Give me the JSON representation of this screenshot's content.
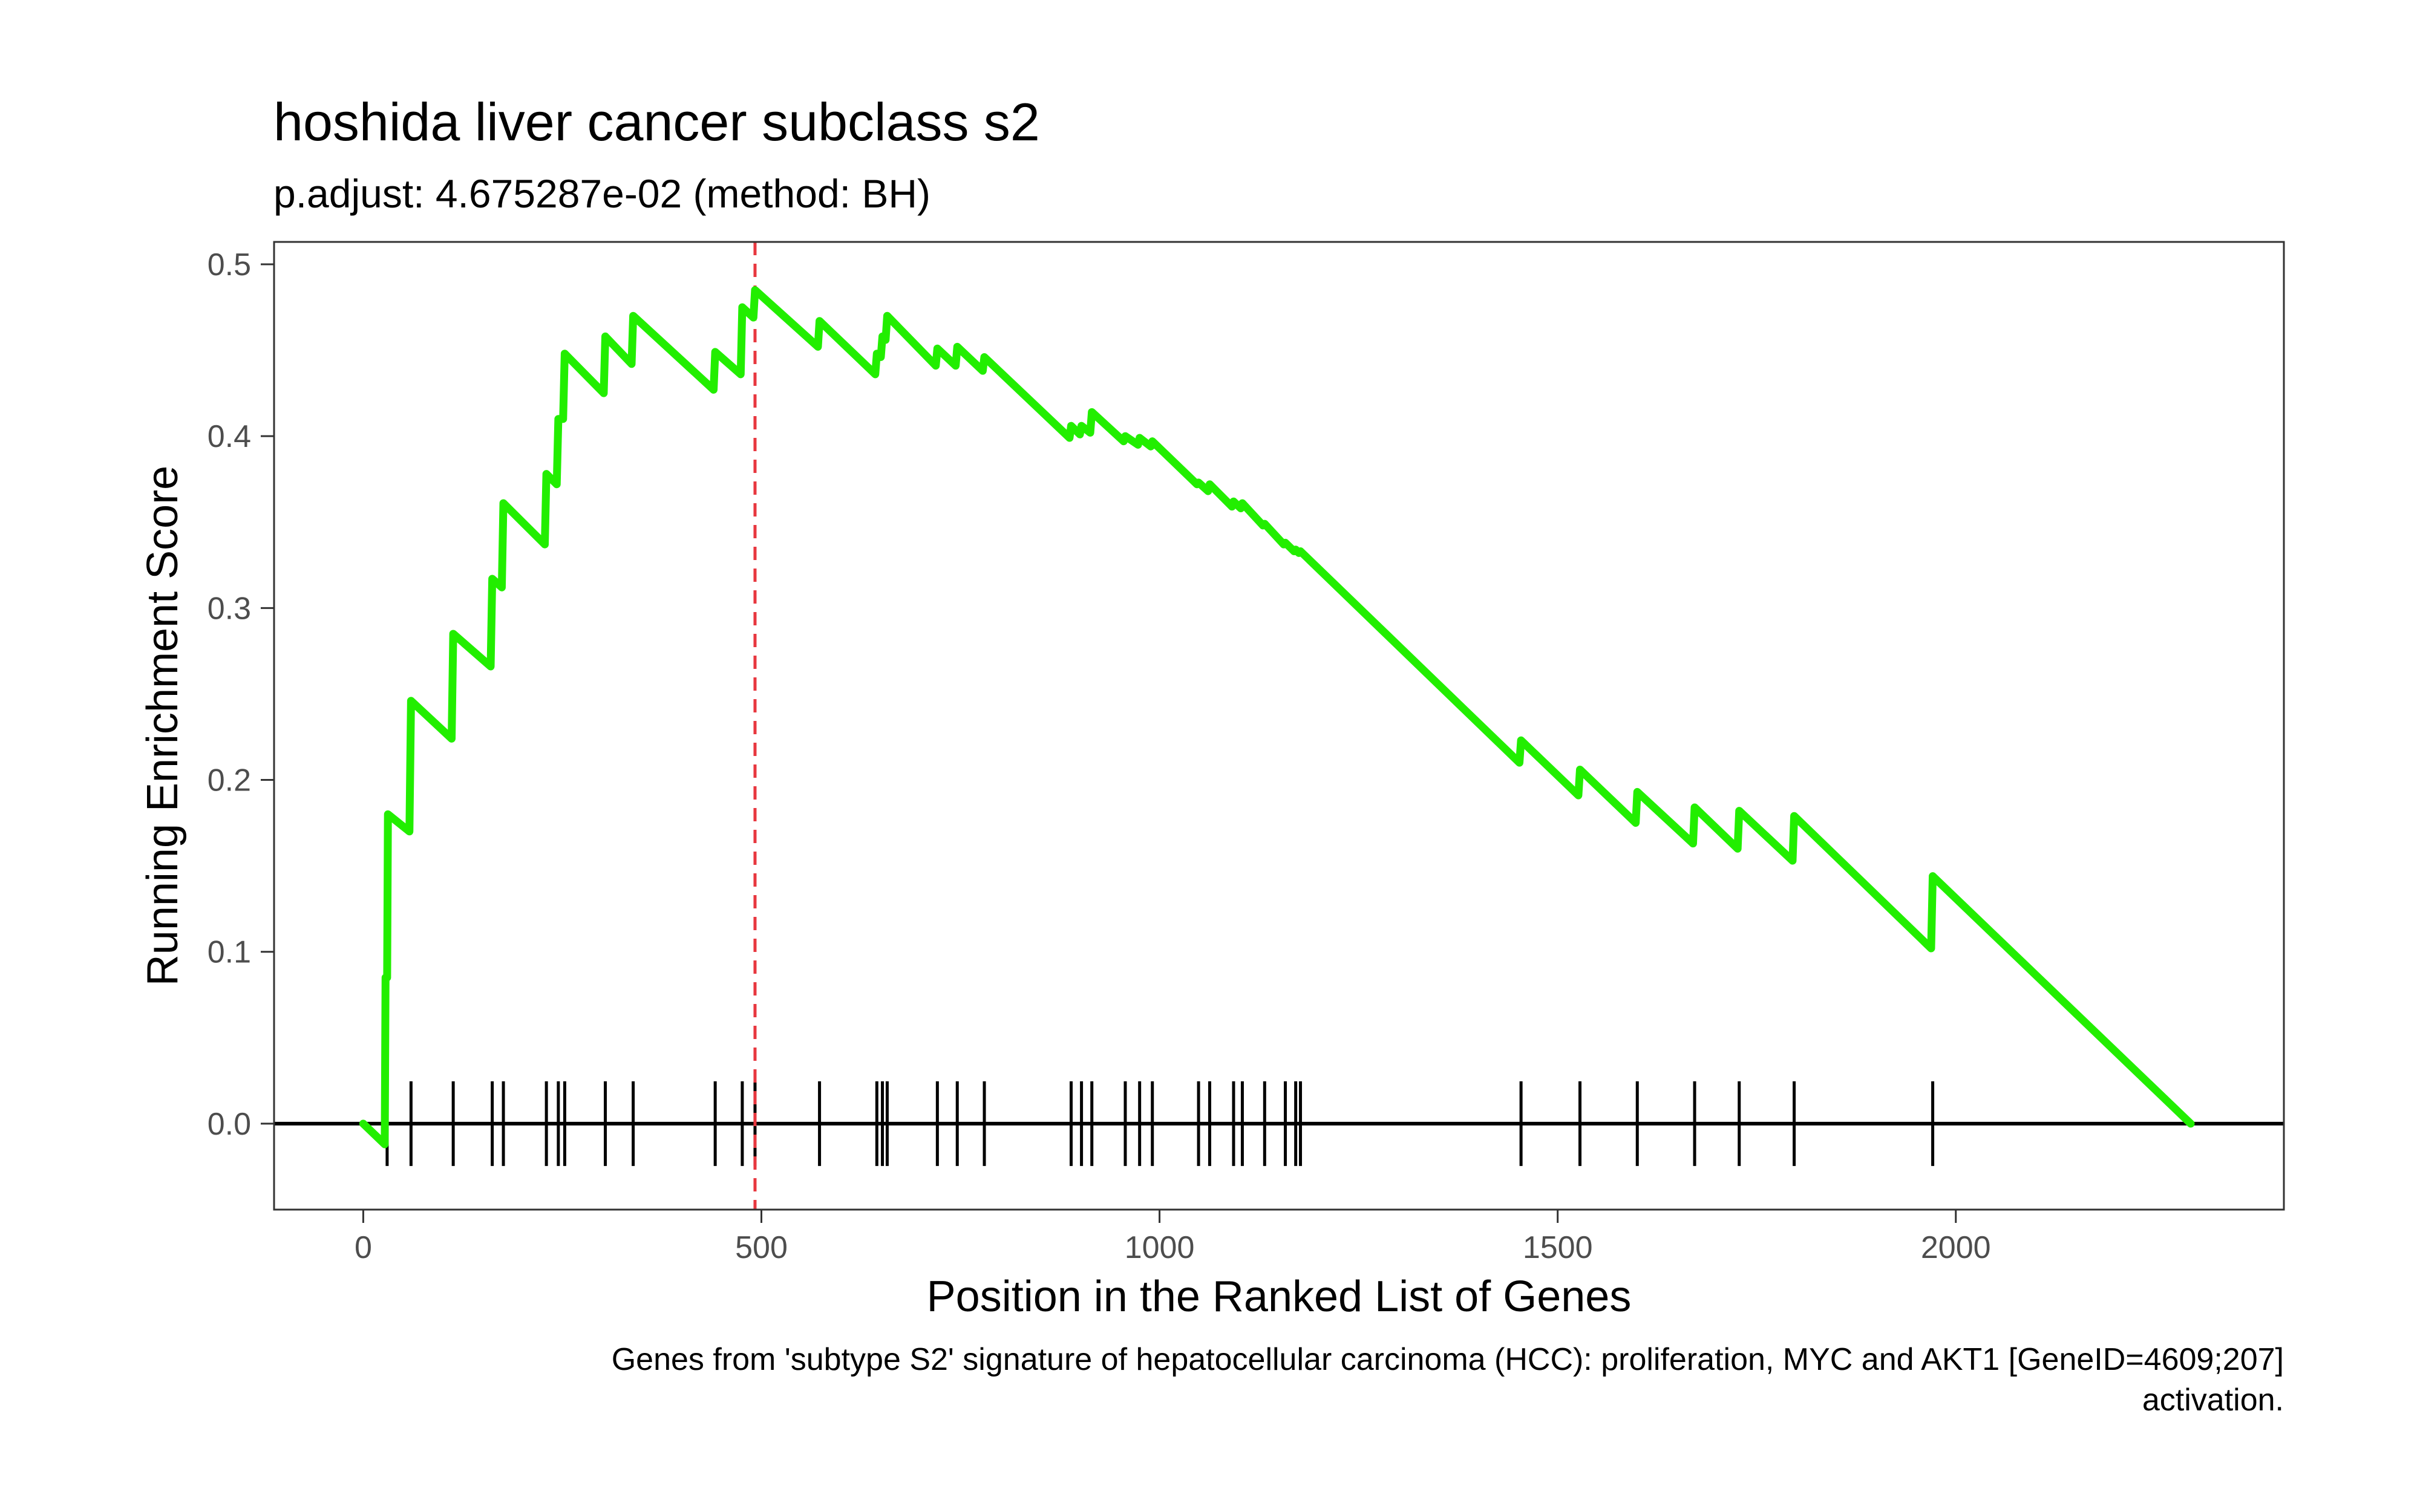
{
  "chart_data": {
    "type": "line",
    "title": "hoshida liver cancer subclass s2",
    "subtitle": "p.adjust: 4.675287e-02 (method: BH)",
    "xlabel": "Position in the Ranked List of Genes",
    "ylabel": "Running Enrichment Score",
    "caption_lines": [
      "Genes from 'subtype S2' signature of hepatocellular carcinoma (HCC): proliferation, MYC and AKT1 [GeneID=4609;207]",
      "activation."
    ],
    "xlim": [
      -112,
      2412
    ],
    "ylim": [
      -0.05,
      0.513
    ],
    "x_ticks": [
      0,
      500,
      1000,
      1500,
      2000
    ],
    "y_ticks": [
      0.0,
      0.1,
      0.2,
      0.3,
      0.4,
      0.5
    ],
    "x_tick_labels": [
      "0",
      "500",
      "1000",
      "1500",
      "2000"
    ],
    "y_tick_labels": [
      "0.0",
      "0.1",
      "0.2",
      "0.3",
      "0.4",
      "0.5"
    ],
    "grid": false,
    "line_color": "#22ee00",
    "marker_line": {
      "x": 492,
      "color": "#e8373f",
      "style": "dashed"
    },
    "hit_positions": [
      30,
      60,
      113,
      162,
      176,
      230,
      245,
      253,
      304,
      339,
      442,
      476,
      492,
      573,
      645,
      652,
      658,
      721,
      746,
      780,
      889,
      902,
      915,
      957,
      975,
      991,
      1049,
      1063,
      1093,
      1104,
      1132,
      1158,
      1171,
      1177,
      1454,
      1528,
      1600,
      1672,
      1728,
      1797,
      1971
    ],
    "running_score": [
      [
        0,
        0.0
      ],
      [
        27,
        -0.012
      ],
      [
        28,
        0.085
      ],
      [
        30,
        0.085
      ],
      [
        31,
        0.18
      ],
      [
        58,
        0.17
      ],
      [
        60,
        0.246
      ],
      [
        111,
        0.224
      ],
      [
        113,
        0.285
      ],
      [
        160,
        0.266
      ],
      [
        162,
        0.317
      ],
      [
        174,
        0.312
      ],
      [
        176,
        0.361
      ],
      [
        228,
        0.337
      ],
      [
        230,
        0.378
      ],
      [
        243,
        0.372
      ],
      [
        245,
        0.41
      ],
      [
        251,
        0.41
      ],
      [
        253,
        0.448
      ],
      [
        302,
        0.425
      ],
      [
        304,
        0.458
      ],
      [
        337,
        0.442
      ],
      [
        339,
        0.47
      ],
      [
        440,
        0.427
      ],
      [
        442,
        0.449
      ],
      [
        474,
        0.436
      ],
      [
        476,
        0.475
      ],
      [
        490,
        0.469
      ],
      [
        492,
        0.485
      ],
      [
        571,
        0.452
      ],
      [
        573,
        0.467
      ],
      [
        643,
        0.436
      ],
      [
        645,
        0.448
      ],
      [
        650,
        0.446
      ],
      [
        652,
        0.458
      ],
      [
        656,
        0.456
      ],
      [
        658,
        0.47
      ],
      [
        719,
        0.441
      ],
      [
        721,
        0.451
      ],
      [
        744,
        0.441
      ],
      [
        746,
        0.452
      ],
      [
        778,
        0.438
      ],
      [
        780,
        0.446
      ],
      [
        887,
        0.399
      ],
      [
        889,
        0.406
      ],
      [
        900,
        0.401
      ],
      [
        902,
        0.406
      ],
      [
        913,
        0.402
      ],
      [
        915,
        0.414
      ],
      [
        955,
        0.397
      ],
      [
        957,
        0.4
      ],
      [
        973,
        0.395
      ],
      [
        975,
        0.399
      ],
      [
        989,
        0.394
      ],
      [
        991,
        0.397
      ],
      [
        1047,
        0.372
      ],
      [
        1049,
        0.373
      ],
      [
        1061,
        0.368
      ],
      [
        1063,
        0.372
      ],
      [
        1091,
        0.359
      ],
      [
        1093,
        0.362
      ],
      [
        1102,
        0.358
      ],
      [
        1104,
        0.361
      ],
      [
        1130,
        0.348
      ],
      [
        1132,
        0.349
      ],
      [
        1156,
        0.337
      ],
      [
        1158,
        0.338
      ],
      [
        1169,
        0.333
      ],
      [
        1171,
        0.334
      ],
      [
        1175,
        0.332
      ],
      [
        1177,
        0.333
      ],
      [
        1452,
        0.21
      ],
      [
        1454,
        0.223
      ],
      [
        1526,
        0.191
      ],
      [
        1528,
        0.206
      ],
      [
        1598,
        0.175
      ],
      [
        1600,
        0.193
      ],
      [
        1670,
        0.163
      ],
      [
        1672,
        0.184
      ],
      [
        1726,
        0.16
      ],
      [
        1728,
        0.182
      ],
      [
        1795,
        0.153
      ],
      [
        1797,
        0.179
      ],
      [
        1969,
        0.102
      ],
      [
        1971,
        0.144
      ],
      [
        2295,
        0.0
      ]
    ]
  }
}
